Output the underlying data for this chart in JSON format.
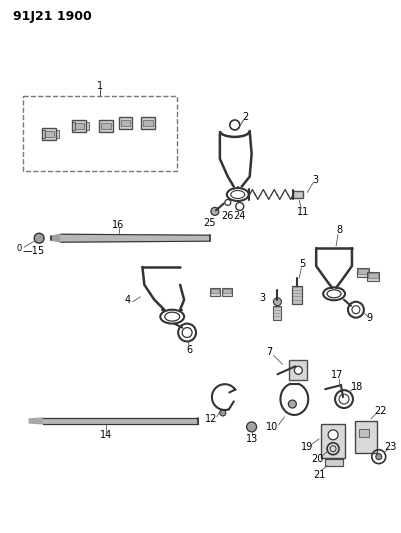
{
  "title": "91J21 1900",
  "background_color": "#ffffff",
  "line_color": "#333333",
  "text_color": "#000000",
  "fig_width": 4.02,
  "fig_height": 5.33,
  "dpi": 100
}
